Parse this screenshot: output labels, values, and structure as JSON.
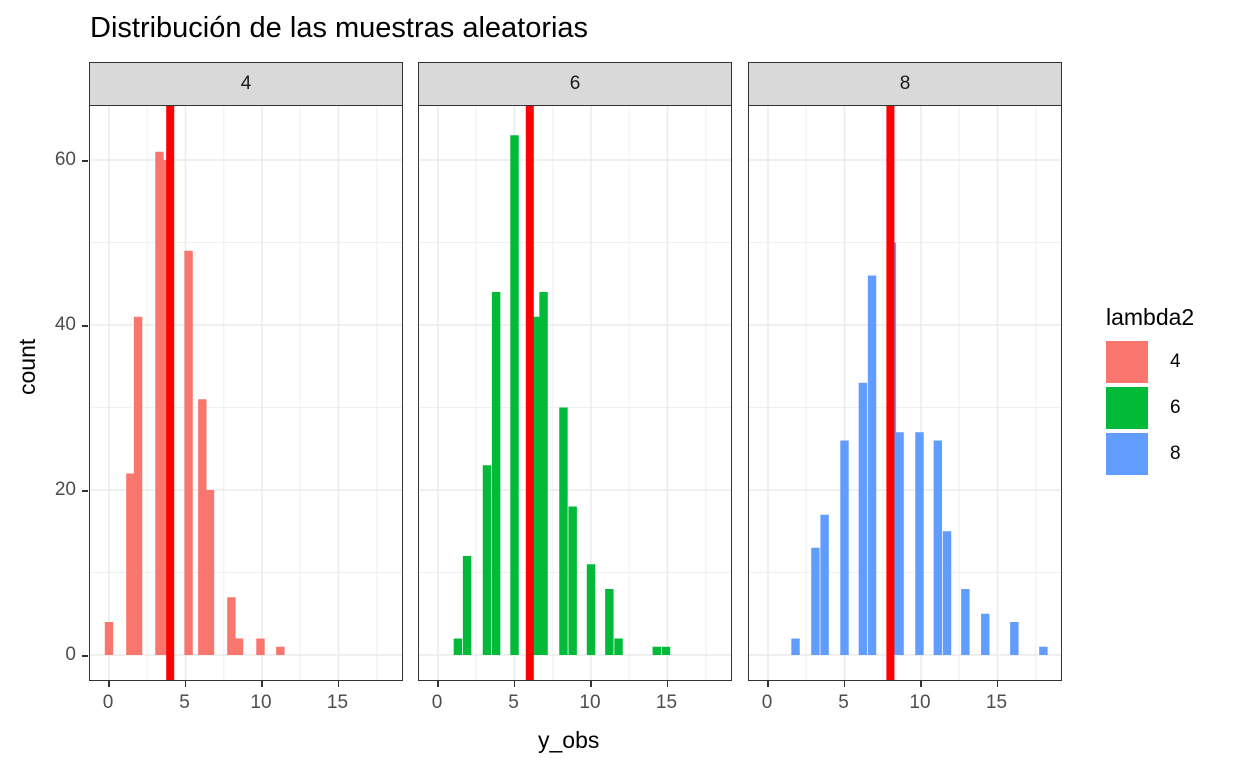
{
  "chart_data": {
    "type": "bar",
    "subtype": "faceted histogram",
    "title": "Distribución de las muestras aleatorias",
    "xlabel": "y_obs",
    "ylabel": "count",
    "ylim": [
      0,
      66
    ],
    "xlim": [
      -1,
      19
    ],
    "yticks": [
      0,
      20,
      40,
      60
    ],
    "xticks": [
      0,
      5,
      10,
      15
    ],
    "grid": true,
    "legend": {
      "title": "lambda2",
      "position": "right",
      "entries": [
        {
          "label": "4",
          "color": "#F8766D"
        },
        {
          "label": "6",
          "color": "#00BA38"
        },
        {
          "label": "8",
          "color": "#619CFF"
        }
      ]
    },
    "reference_line": {
      "color": "#FF0000",
      "description": "vertical line at lambda2 value"
    },
    "facets": [
      {
        "label": "4",
        "color": "#F8766D",
        "vline": 4,
        "bins": [
          {
            "x": 0.0,
            "count": 4
          },
          {
            "x": 1.4,
            "count": 22
          },
          {
            "x": 1.9,
            "count": 41
          },
          {
            "x": 3.3,
            "count": 61
          },
          {
            "x": 3.8,
            "count": 60
          },
          {
            "x": 5.2,
            "count": 49
          },
          {
            "x": 6.1,
            "count": 31
          },
          {
            "x": 6.6,
            "count": 20
          },
          {
            "x": 8.0,
            "count": 7
          },
          {
            "x": 8.5,
            "count": 2
          },
          {
            "x": 9.9,
            "count": 2
          },
          {
            "x": 11.2,
            "count": 1
          }
        ]
      },
      {
        "label": "6",
        "color": "#00BA38",
        "vline": 6,
        "bins": [
          {
            "x": 1.3,
            "count": 2
          },
          {
            "x": 1.9,
            "count": 12
          },
          {
            "x": 3.2,
            "count": 23
          },
          {
            "x": 3.8,
            "count": 44
          },
          {
            "x": 5.0,
            "count": 63
          },
          {
            "x": 6.5,
            "count": 41
          },
          {
            "x": 6.9,
            "count": 44
          },
          {
            "x": 8.2,
            "count": 30
          },
          {
            "x": 8.8,
            "count": 18
          },
          {
            "x": 10.0,
            "count": 11
          },
          {
            "x": 11.2,
            "count": 8
          },
          {
            "x": 11.8,
            "count": 2
          },
          {
            "x": 14.3,
            "count": 1
          },
          {
            "x": 14.9,
            "count": 1
          }
        ]
      },
      {
        "label": "8",
        "color": "#619CFF",
        "vline": 8,
        "bins": [
          {
            "x": 1.8,
            "count": 2
          },
          {
            "x": 3.1,
            "count": 13
          },
          {
            "x": 3.7,
            "count": 17
          },
          {
            "x": 5.0,
            "count": 26
          },
          {
            "x": 6.2,
            "count": 33
          },
          {
            "x": 6.8,
            "count": 46
          },
          {
            "x": 8.1,
            "count": 50
          },
          {
            "x": 8.6,
            "count": 27
          },
          {
            "x": 9.9,
            "count": 27
          },
          {
            "x": 11.1,
            "count": 26
          },
          {
            "x": 11.7,
            "count": 15
          },
          {
            "x": 12.9,
            "count": 8
          },
          {
            "x": 14.2,
            "count": 5
          },
          {
            "x": 16.1,
            "count": 4
          },
          {
            "x": 18.0,
            "count": 1
          }
        ]
      }
    ]
  }
}
